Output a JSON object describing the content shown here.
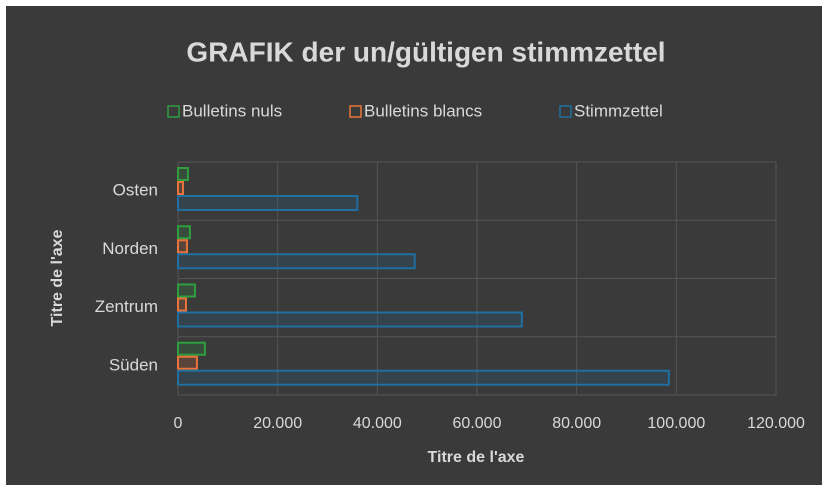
{
  "chart_data": {
    "type": "hbar",
    "title": "GRAFIK der un/gültigen stimmzettel",
    "x_label": "Titre de l'axe",
    "y_label": "Titre de l'axe",
    "categories": [
      "Süden",
      "Zentrum",
      "Norden",
      "Osten"
    ],
    "series": [
      {
        "name": "Bulletins nuls",
        "color": "#2e9e3f",
        "values": [
          5400,
          3400,
          2400,
          2000
        ]
      },
      {
        "name": "Bulletins blancs",
        "color": "#e8743b",
        "values": [
          3800,
          1600,
          1800,
          1000
        ]
      },
      {
        "name": "Stimmzettel",
        "color": "#1f6fa0",
        "values": [
          98500,
          69000,
          47500,
          36000
        ]
      }
    ],
    "xlim": [
      0,
      120000
    ],
    "xticks": [
      0,
      {
        "value": 20000,
        "label": "20.000"
      },
      {
        "value": 40000,
        "label": "40.000"
      },
      {
        "value": 60000,
        "label": "60.000"
      },
      {
        "value": 80000,
        "label": "80.000"
      },
      {
        "value": 100000,
        "label": "100.000"
      },
      {
        "value": 120000,
        "label": "120.000"
      }
    ],
    "grid": true,
    "legend": "top"
  }
}
